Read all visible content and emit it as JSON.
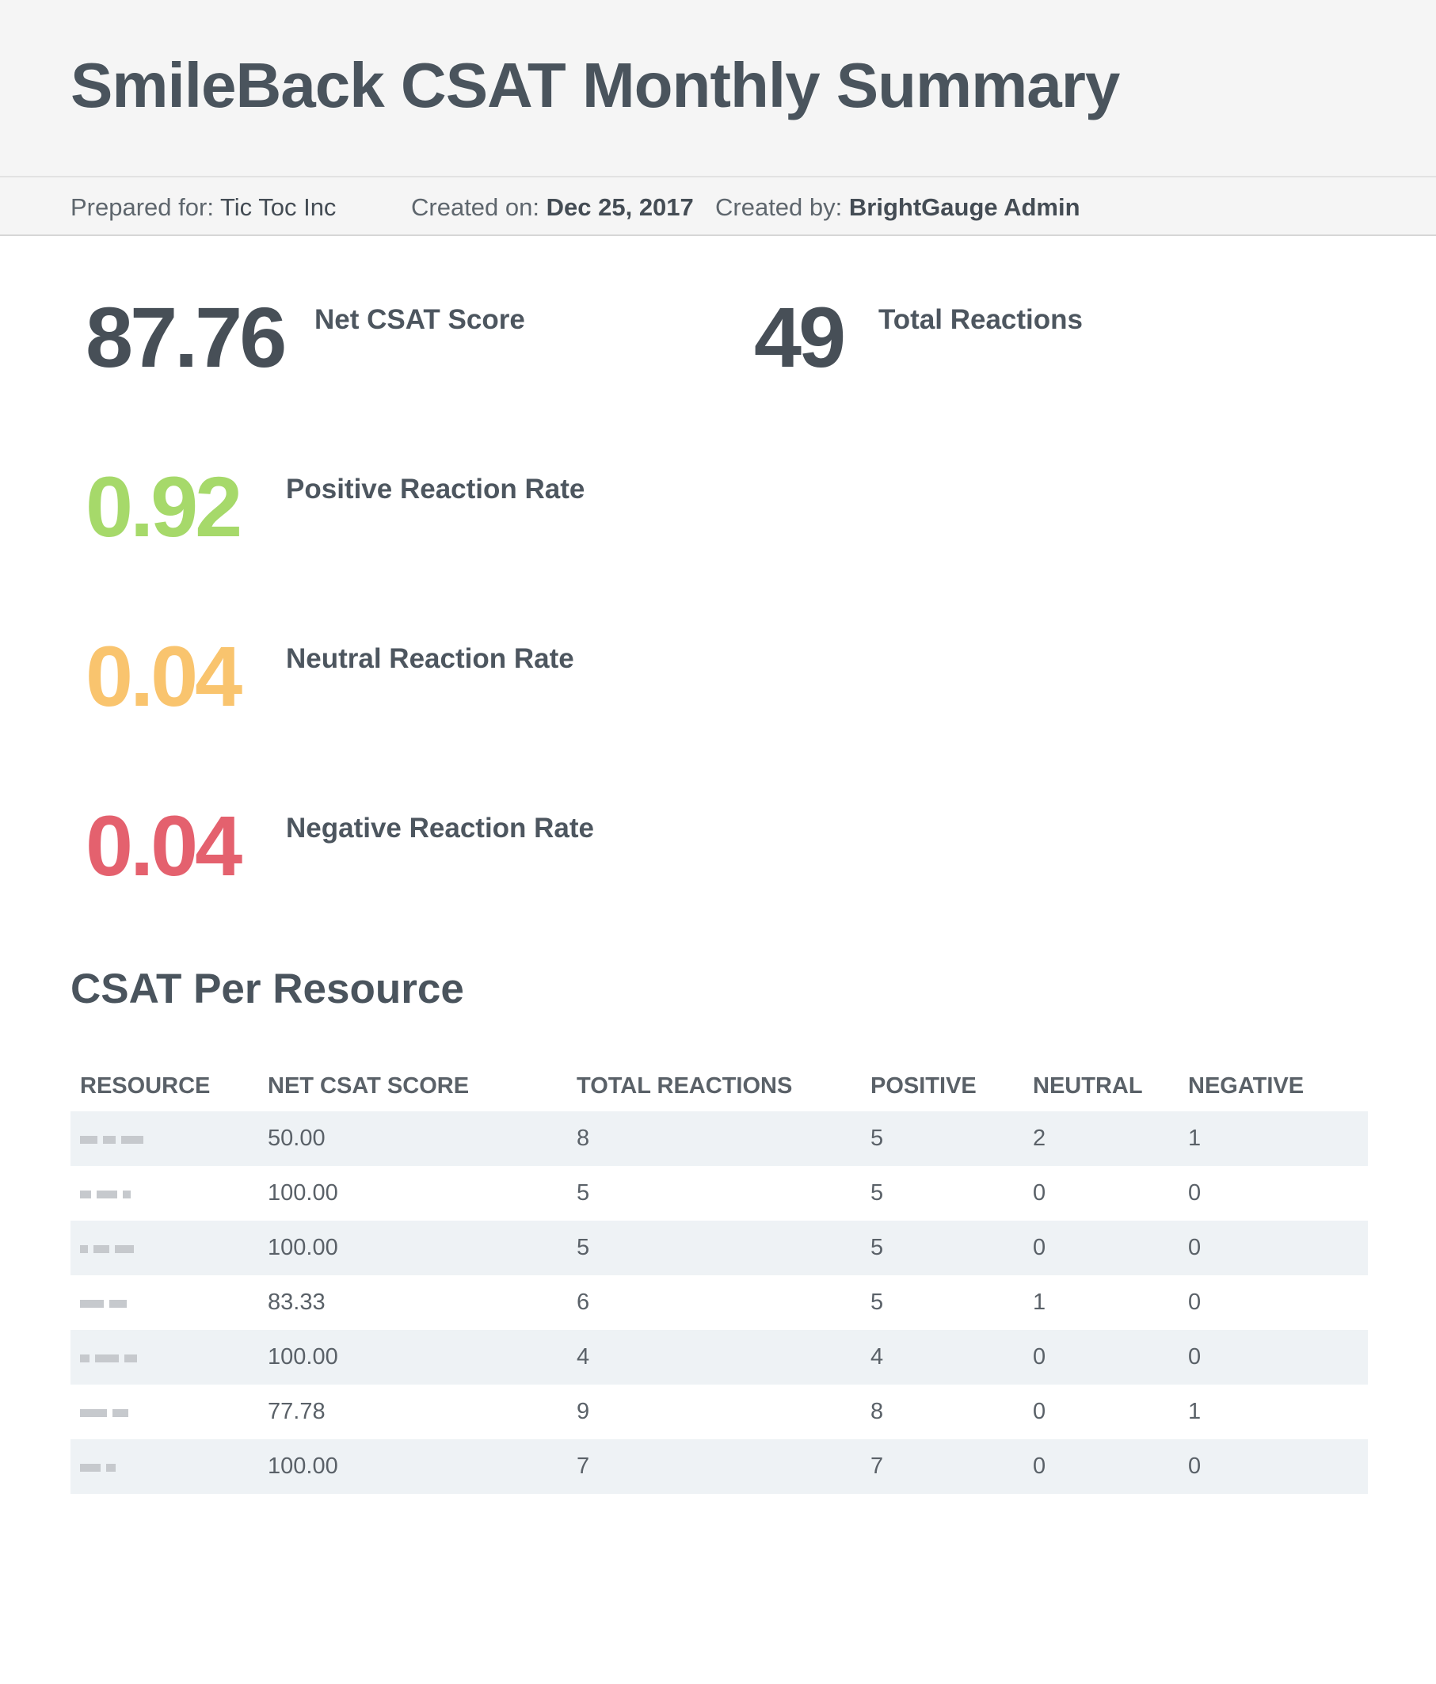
{
  "header": {
    "title": "SmileBack CSAT Monthly Summary"
  },
  "meta": {
    "prepared_for_label": "Prepared for:",
    "prepared_for_value": "Tic Toc Inc",
    "created_on_label": "Created on:",
    "created_on_value": "Dec 25, 2017",
    "created_by_label": "Created by:",
    "created_by_value": "BrightGauge Admin"
  },
  "stats": {
    "net_csat": {
      "value": "87.76",
      "label": "Net CSAT Score",
      "color": "#474f57"
    },
    "total_reactions": {
      "value": "49",
      "label": "Total Reactions",
      "color": "#474f57"
    },
    "positive": {
      "value": "0.92",
      "label": "Positive Reaction Rate",
      "color": "#a6d96a"
    },
    "neutral": {
      "value": "0.04",
      "label": "Neutral Reaction Rate",
      "color": "#f9c46e"
    },
    "negative": {
      "value": "0.04",
      "label": "Negative Reaction Rate",
      "color": "#e4616e"
    }
  },
  "resource_section": {
    "title": "CSAT Per Resource",
    "columns": [
      "RESOURCE",
      "NET CSAT SCORE",
      "TOTAL REACTIONS",
      "POSITIVE",
      "NEUTRAL",
      "NEGATIVE"
    ],
    "rows": [
      {
        "resource": "",
        "net_csat_score": "50.00",
        "total_reactions": "8",
        "positive": "5",
        "neutral": "2",
        "negative": "1"
      },
      {
        "resource": "",
        "net_csat_score": "100.00",
        "total_reactions": "5",
        "positive": "5",
        "neutral": "0",
        "negative": "0"
      },
      {
        "resource": "",
        "net_csat_score": "100.00",
        "total_reactions": "5",
        "positive": "5",
        "neutral": "0",
        "negative": "0"
      },
      {
        "resource": "",
        "net_csat_score": "83.33",
        "total_reactions": "6",
        "positive": "5",
        "neutral": "1",
        "negative": "0"
      },
      {
        "resource": "",
        "net_csat_score": "100.00",
        "total_reactions": "4",
        "positive": "4",
        "neutral": "0",
        "negative": "0"
      },
      {
        "resource": "",
        "net_csat_score": "77.78",
        "total_reactions": "9",
        "positive": "8",
        "neutral": "0",
        "negative": "1"
      },
      {
        "resource": "",
        "net_csat_score": "100.00",
        "total_reactions": "7",
        "positive": "7",
        "neutral": "0",
        "negative": "0"
      }
    ]
  }
}
